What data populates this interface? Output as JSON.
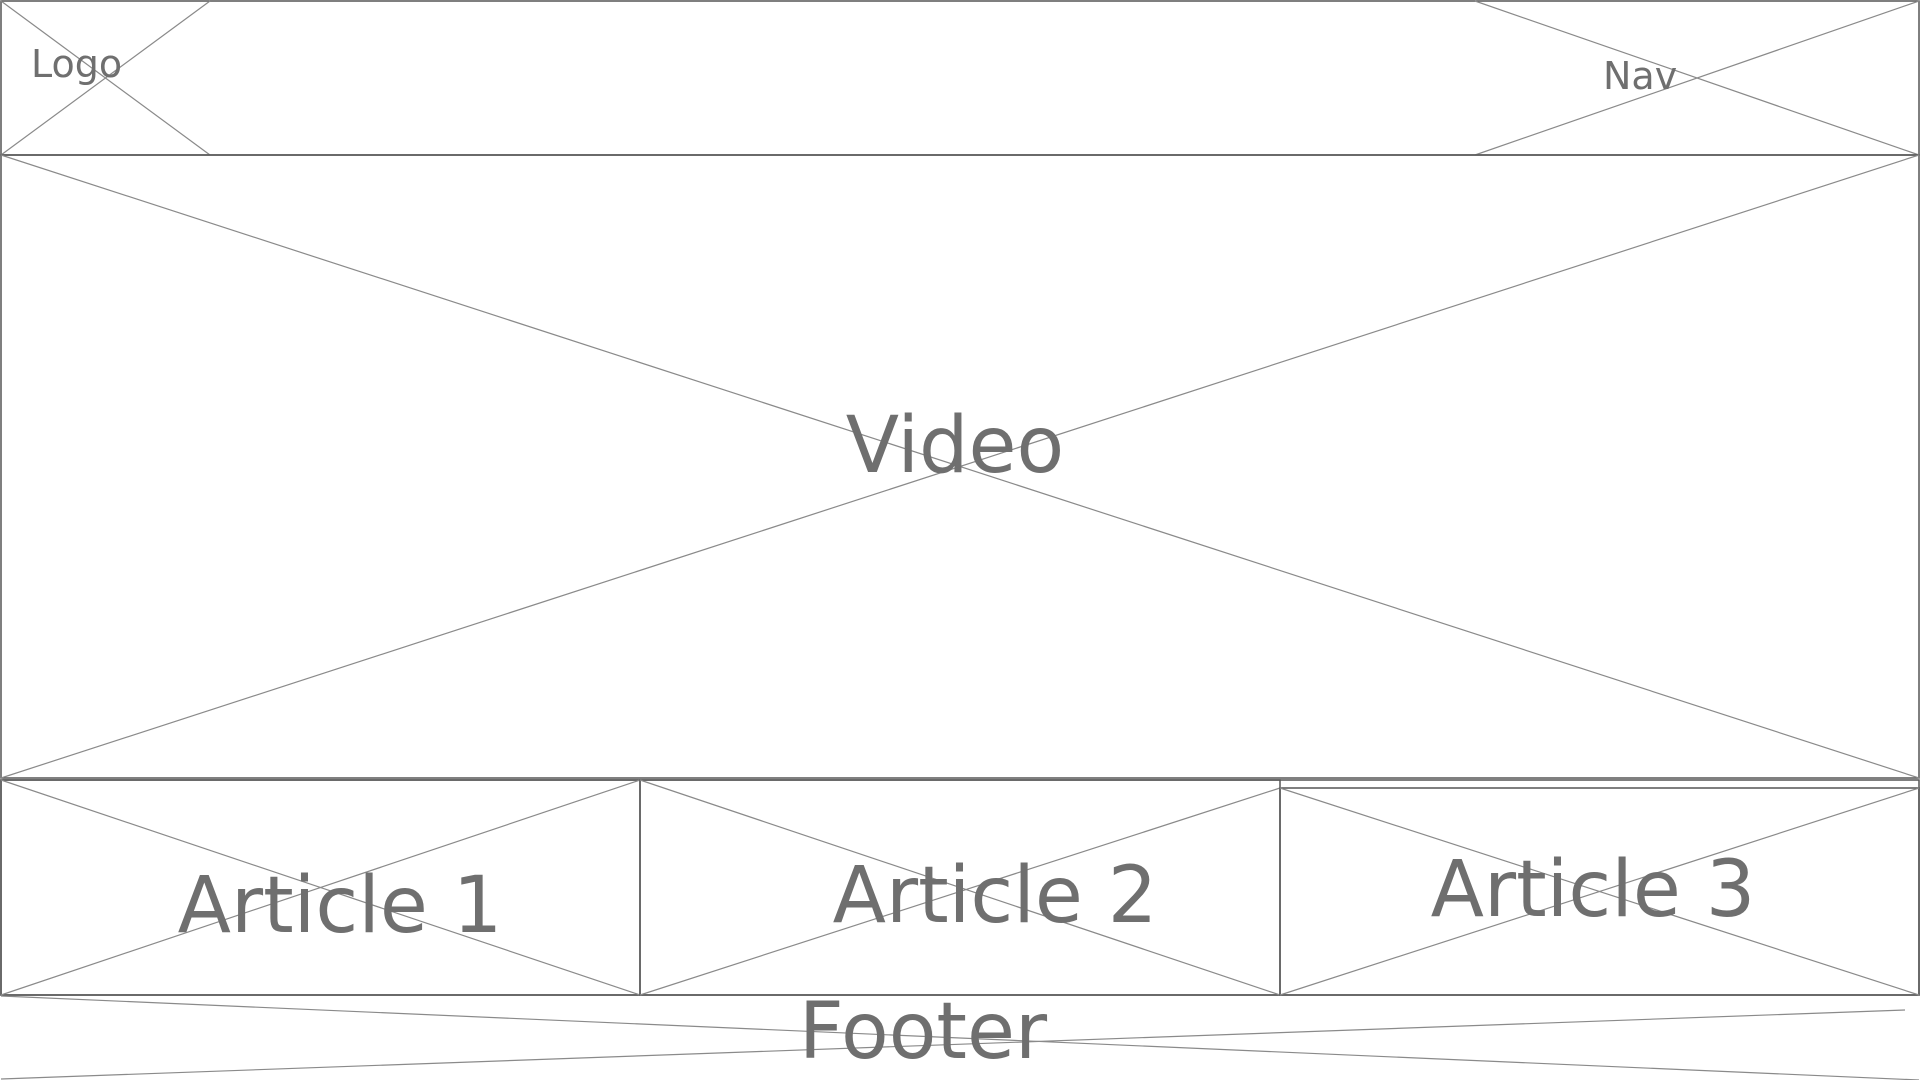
{
  "wireframe": {
    "header": {
      "logo_label": "Logo",
      "nav_label": "Nav"
    },
    "hero": {
      "label": "Video"
    },
    "articles": [
      {
        "label": "Article 1"
      },
      {
        "label": "Article 2"
      },
      {
        "label": "Article 3"
      }
    ],
    "footer": {
      "label": "Footer"
    },
    "colors": {
      "stroke": "#555555",
      "cross": "#8a8a8a",
      "text": "#6f6f6f",
      "background": "#ffffff"
    }
  }
}
